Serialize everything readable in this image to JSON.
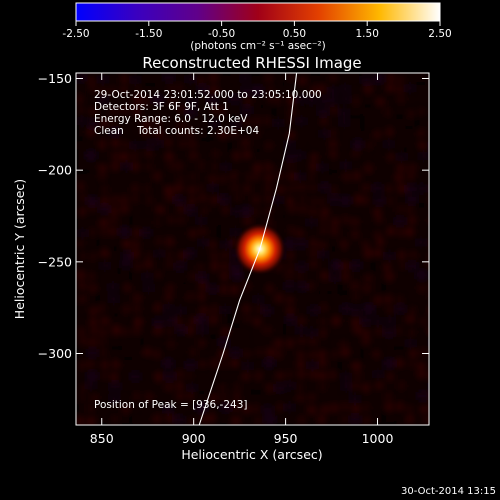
{
  "footer_date": "30-Oct-2014 13:15",
  "chart_data": {
    "type": "heatmap",
    "title": "Reconstructed RHESSI Image",
    "xlabel": "Heliocentric X (arcsec)",
    "ylabel": "Heliocentric Y (arcsec)",
    "xlim": [
      836,
      1028
    ],
    "ylim": [
      -339,
      -147
    ],
    "x_ticks": [
      850,
      900,
      950,
      1000
    ],
    "y_ticks": [
      -150,
      -200,
      -250,
      -300
    ],
    "colorbar": {
      "range": [
        -2.5,
        2.5
      ],
      "ticks": [
        "-2.50",
        "-1.50",
        "-0.50",
        "0.50",
        "1.50",
        "2.50"
      ],
      "unit_label": "(photons cm⁻² s⁻¹ asec⁻²)",
      "colors": [
        "#0000ff",
        "#3a00c0",
        "#60008a",
        "#a00018",
        "#e34000",
        "#ffb800",
        "#ffffff"
      ]
    },
    "annotations": [
      "29-Oct-2014 23:01:52.000 to 23:05:10.000",
      "Detectors: 3F 6F 9F, Att 1",
      "Energy Range: 6.0 - 12.0 keV",
      "Clean    Total counts: 2.30E+04",
      "Position of Peak = [936,-243]"
    ],
    "peak": {
      "x": 936,
      "y": -243
    },
    "limb_curve": [
      [
        903,
        -339
      ],
      [
        916,
        -300
      ],
      [
        925,
        -271
      ],
      [
        936,
        -243
      ],
      [
        945,
        -210
      ],
      [
        952,
        -180
      ],
      [
        956,
        -147
      ]
    ]
  }
}
